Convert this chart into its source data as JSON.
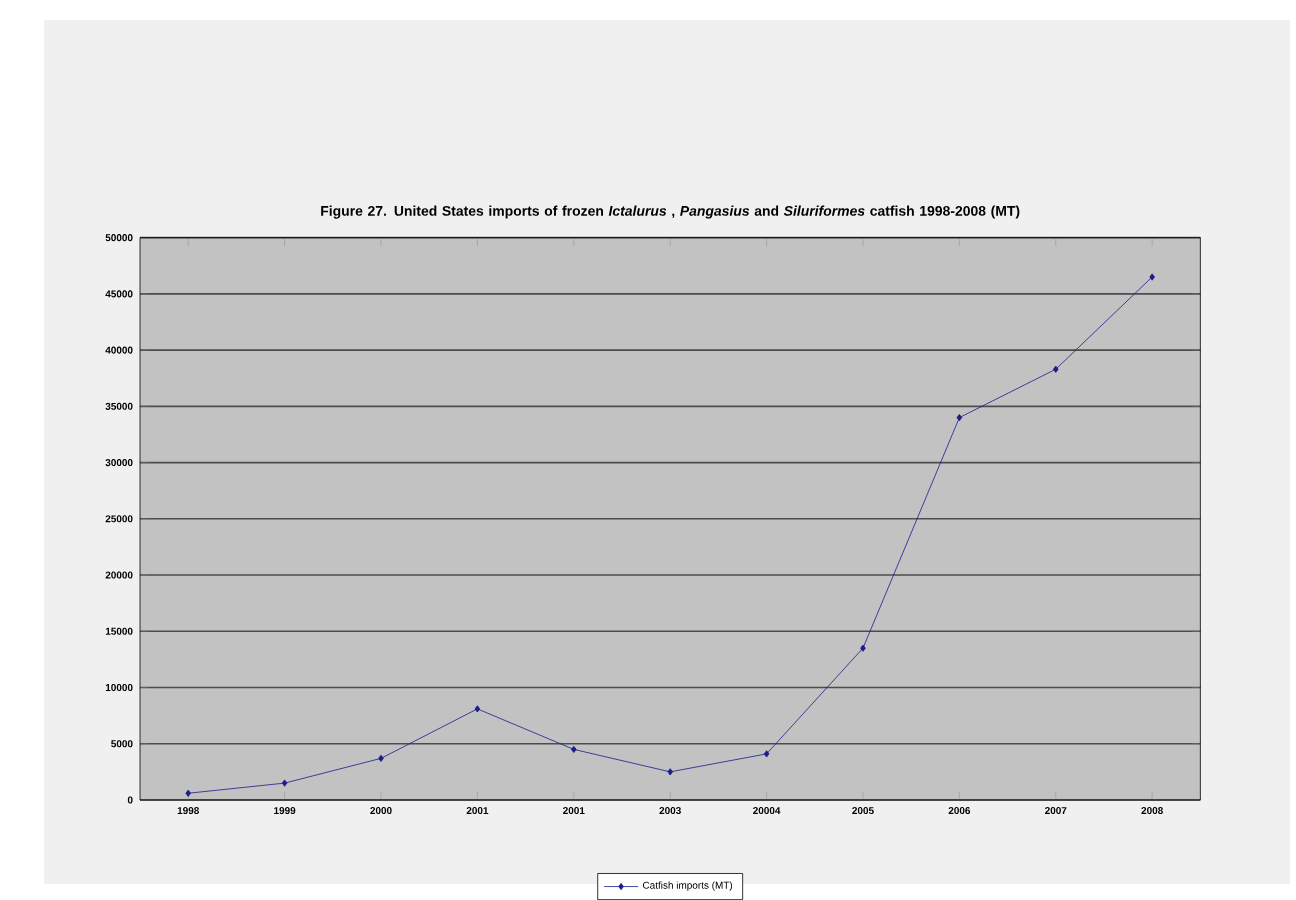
{
  "chart_data": {
    "type": "line",
    "title": "Figure 27. United States imports of frozen *Ictalurus* , *Pangasius* and *Siluriformes* catfish 1998-2008 (MT)",
    "categories": [
      "1998",
      "1999",
      "2000",
      "2001",
      "2001",
      "2003",
      "20004",
      "2005",
      "2006",
      "2007",
      "2008"
    ],
    "series": [
      {
        "name": "Catfish imports (MT)",
        "color": "#1c1c8c",
        "values": [
          600,
          1500,
          3700,
          8100,
          4500,
          2500,
          4100,
          13500,
          34000,
          38300,
          46500
        ]
      }
    ],
    "ylim": [
      0,
      50000
    ],
    "yticks": [
      0,
      5000,
      10000,
      15000,
      20000,
      25000,
      30000,
      35000,
      40000,
      45000,
      50000
    ],
    "grid": "y",
    "legend": "bottom",
    "marker": "diamond",
    "line_style": "solid"
  }
}
